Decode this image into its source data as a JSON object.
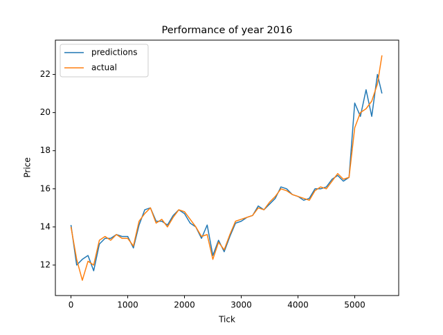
{
  "chart_data": {
    "type": "line",
    "title": "Performance of year 2016",
    "xlabel": "Tick",
    "ylabel": "Price",
    "x": [
      0,
      100,
      200,
      300,
      400,
      500,
      600,
      700,
      800,
      900,
      1000,
      1100,
      1200,
      1300,
      1400,
      1500,
      1600,
      1700,
      1800,
      1900,
      2000,
      2100,
      2200,
      2300,
      2400,
      2500,
      2600,
      2700,
      2800,
      2900,
      3000,
      3100,
      3200,
      3300,
      3400,
      3500,
      3600,
      3700,
      3800,
      3900,
      4000,
      4100,
      4200,
      4300,
      4400,
      4500,
      4600,
      4700,
      4800,
      4900,
      5000,
      5100,
      5200,
      5300,
      5400,
      5480
    ],
    "series": [
      {
        "name": "predictions",
        "color": "#1f77b4",
        "values": [
          14.1,
          12.0,
          12.3,
          12.5,
          11.7,
          13.1,
          13.4,
          13.4,
          13.6,
          13.5,
          13.5,
          12.9,
          14.1,
          14.9,
          15.0,
          14.3,
          14.3,
          14.1,
          14.6,
          14.9,
          14.7,
          14.2,
          14.0,
          13.4,
          14.1,
          12.5,
          13.3,
          12.7,
          13.5,
          14.2,
          14.3,
          14.5,
          14.6,
          15.1,
          14.9,
          15.2,
          15.5,
          16.1,
          16.0,
          15.7,
          15.6,
          15.4,
          15.5,
          16.0,
          16.0,
          16.1,
          16.5,
          16.7,
          16.4,
          16.6,
          20.5,
          19.8,
          21.2,
          19.8,
          22.0,
          21.0
        ]
      },
      {
        "name": "actual",
        "color": "#ff7f0e",
        "values": [
          14.0,
          12.3,
          11.2,
          12.2,
          12.0,
          13.3,
          13.5,
          13.3,
          13.6,
          13.4,
          13.4,
          13.0,
          14.3,
          14.7,
          15.0,
          14.2,
          14.4,
          14.0,
          14.5,
          14.9,
          14.8,
          14.4,
          14.0,
          13.5,
          13.6,
          12.3,
          13.2,
          12.8,
          13.6,
          14.3,
          14.4,
          14.5,
          14.6,
          15.0,
          14.9,
          15.3,
          15.6,
          16.0,
          15.9,
          15.7,
          15.6,
          15.5,
          15.4,
          15.9,
          16.1,
          16.0,
          16.4,
          16.8,
          16.5,
          16.6,
          19.2,
          20.0,
          20.2,
          20.6,
          21.5,
          23.0
        ]
      }
    ],
    "xlim": [
      -275,
      5775
    ],
    "ylim": [
      10.4,
      23.8
    ],
    "xticks": [
      0,
      1000,
      2000,
      3000,
      4000,
      5000
    ],
    "yticks": [
      12,
      14,
      16,
      18,
      20,
      22
    ],
    "legend": "upper left"
  }
}
